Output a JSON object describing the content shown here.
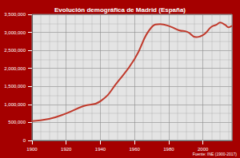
{
  "chart_data": {
    "type": "line",
    "title": "Evolución demográfica de Madrid (España)",
    "source": "Fuente: INE (1900-2017)",
    "x": [
      1900,
      1910,
      1920,
      1930,
      1940,
      1950,
      1960,
      1970,
      1975,
      1981,
      1986,
      1991,
      1996,
      1998,
      2001,
      2005,
      2008,
      2010,
      2013,
      2015,
      2017
    ],
    "values": [
      539835,
      599807,
      750896,
      952832,
      1088647,
      1618435,
      2259931,
      3146071,
      3228057,
      3158818,
      3058182,
      3010492,
      2866850,
      2881506,
      2957058,
      3155359,
      3213271,
      3273049,
      3207247,
      3141991,
      3182981
    ],
    "color": "#c0392b",
    "xlim": [
      1900,
      2017
    ],
    "xticks": [
      1900,
      1920,
      1940,
      1960,
      1980,
      2000
    ],
    "ylim": [
      0,
      3500000
    ],
    "yticks": [
      0,
      {
        "value": 500000,
        "label": "500,000"
      },
      {
        "value": 1000000,
        "label": "1,000,000"
      },
      {
        "value": 1500000,
        "label": "1,500,000"
      },
      {
        "value": 2000000,
        "label": "2,000,000"
      },
      {
        "value": 2500000,
        "label": "2,500,000"
      },
      {
        "value": 3000000,
        "label": "3,000,000"
      },
      {
        "value": 3500000,
        "label": "3,500,000"
      }
    ],
    "grid": true
  }
}
